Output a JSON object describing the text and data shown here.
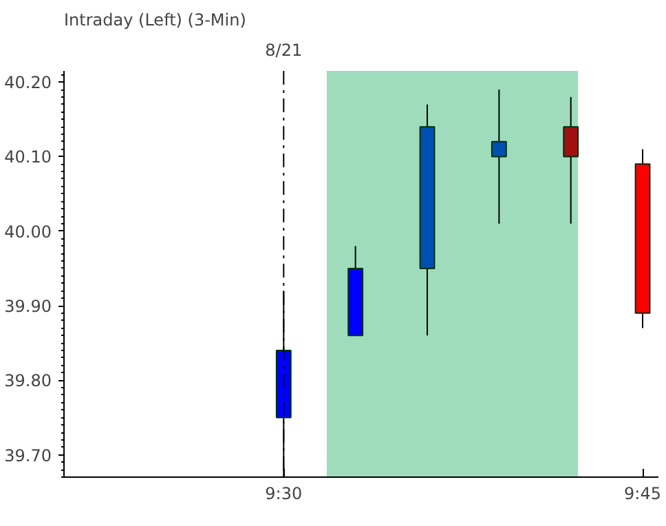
{
  "chart_data": {
    "type": "candlestick",
    "title": "Intraday     (Left)     (3-Min)",
    "x": [
      9.5,
      9.55,
      9.6,
      9.65,
      9.7,
      9.75
    ],
    "ohlc": [
      [
        39.75,
        39.92,
        39.67,
        39.84
      ],
      [
        39.86,
        39.98,
        39.86,
        39.95
      ],
      [
        39.95,
        40.17,
        39.86,
        40.14
      ],
      [
        40.1,
        40.19,
        40.01,
        40.12
      ],
      [
        40.14,
        40.18,
        40.01,
        40.1
      ],
      [
        40.09,
        40.11,
        39.87,
        39.89
      ]
    ],
    "colors": [
      "#0000ff",
      "#0000ff",
      "#0050b0",
      "#0050b0",
      "#a01010",
      "#ff0000"
    ],
    "xlim": [
      9.347,
      9.761
    ],
    "ylim": [
      39.67,
      40.215
    ],
    "xticks": [
      {
        "value": 9.5,
        "label": "9:30"
      },
      {
        "value": 9.75,
        "label": "9:45"
      }
    ],
    "yticks": [
      {
        "value": 39.7,
        "label": "39.70"
      },
      {
        "value": 39.8,
        "label": "39.80"
      },
      {
        "value": 39.9,
        "label": "39.90"
      },
      {
        "value": 40.0,
        "label": "40.00"
      },
      {
        "value": 40.1,
        "label": "40.10"
      },
      {
        "value": 40.2,
        "label": "40.20"
      }
    ],
    "ref_lines": [
      {
        "axis": "x",
        "value": 9.5,
        "line_style": "dashdot",
        "color": "#000000"
      }
    ],
    "annotations": [
      "8/21"
    ],
    "bands": [
      {
        "axis": "x",
        "from": 9.53,
        "to": 9.705,
        "color": "#9fdcbc"
      }
    ],
    "grid": false
  }
}
